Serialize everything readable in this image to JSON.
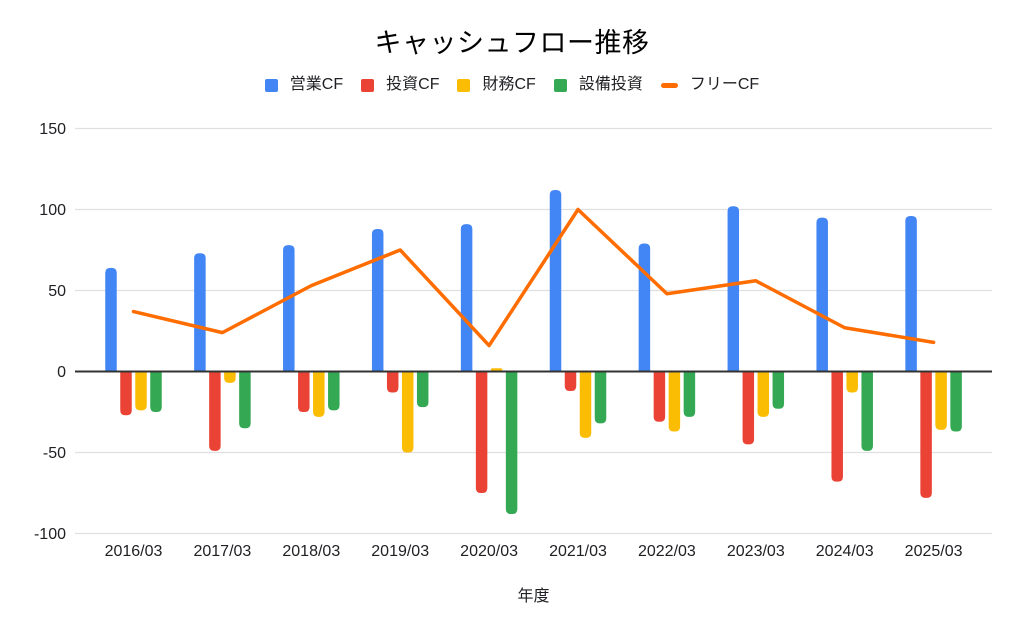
{
  "chart_data": {
    "type": "combo",
    "title": "キャッシュフロー推移",
    "xlabel": "年度",
    "ylabel": "",
    "categories": [
      "2016/03",
      "2017/03",
      "2018/03",
      "2019/03",
      "2020/03",
      "2021/03",
      "2022/03",
      "2023/03",
      "2024/03",
      "2025/03"
    ],
    "series": [
      {
        "key": "operating-cf",
        "name": "営業CF",
        "type": "bar",
        "color": "#4285F4",
        "values": [
          64,
          73,
          78,
          88,
          91,
          112,
          79,
          102,
          95,
          96
        ]
      },
      {
        "key": "investing-cf",
        "name": "投資CF",
        "type": "bar",
        "color": "#EA4335",
        "values": [
          -27,
          -49,
          -25,
          -13,
          -75,
          -12,
          -31,
          -45,
          -68,
          -78
        ]
      },
      {
        "key": "financing-cf",
        "name": "財務CF",
        "type": "bar",
        "color": "#FBBC04",
        "values": [
          -24,
          -7,
          -28,
          -50,
          2,
          -41,
          -37,
          -28,
          -13,
          -36
        ]
      },
      {
        "key": "capex",
        "name": "設備投資",
        "type": "bar",
        "color": "#34A853",
        "values": [
          -25,
          -35,
          -24,
          -22,
          -88,
          -32,
          -28,
          -23,
          -49,
          -37
        ]
      },
      {
        "key": "free-cf",
        "name": "フリーCF",
        "type": "line",
        "color": "#FF6D01",
        "values": [
          37,
          24,
          53,
          75,
          16,
          100,
          48,
          56,
          27,
          18
        ]
      }
    ],
    "ylim": [
      -100,
      150
    ],
    "yticks": [
      150,
      100,
      50,
      0,
      -50,
      -100
    ],
    "grid": true,
    "legend_position": "top",
    "style": {
      "background": "#FFFFFF",
      "grid_color": "#E0E0E0",
      "zero_line_color": "#333333",
      "text_color": "#202124",
      "title_color": "#000000"
    }
  }
}
